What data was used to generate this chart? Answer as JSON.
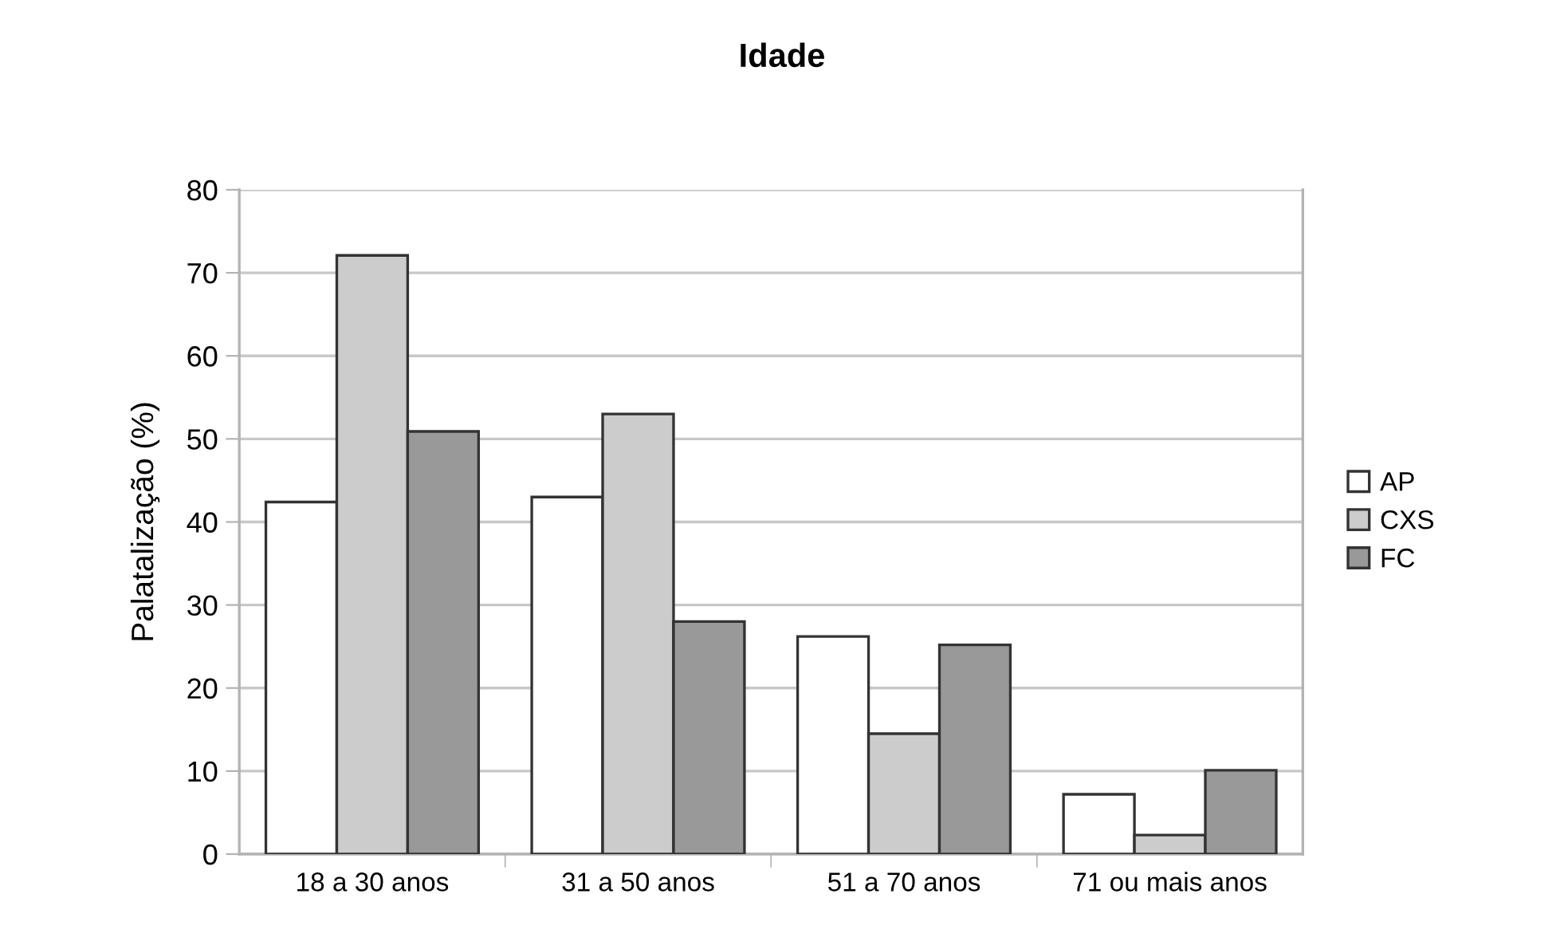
{
  "chart_data": {
    "type": "bar",
    "title": "Idade",
    "ylabel": "Palatalização (%)",
    "categories": [
      "18 a 30 anos",
      "31 a 50 anos",
      "51 a 70 anos",
      "71 ou mais anos"
    ],
    "series": [
      {
        "name": "AP",
        "color": "#ffffff",
        "values": [
          42.4,
          43.0,
          26.2,
          7.2
        ]
      },
      {
        "name": "CXS",
        "color": "#cccccc",
        "values": [
          72.1,
          53.0,
          14.5,
          2.3
        ]
      },
      {
        "name": "FC",
        "color": "#999999",
        "values": [
          50.9,
          28.0,
          25.2,
          10.1
        ]
      }
    ],
    "ylim": [
      0,
      80
    ],
    "yticks": [
      0,
      10,
      20,
      30,
      40,
      50,
      60,
      70,
      80
    ],
    "grid": "y",
    "legend": "right"
  }
}
